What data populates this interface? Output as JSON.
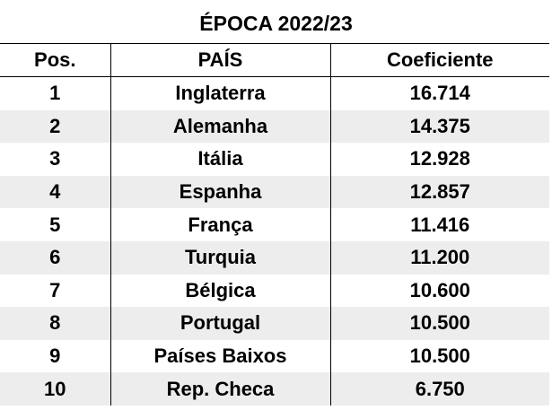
{
  "title": "ÉPOCA 2022/23",
  "table": {
    "headers": {
      "pos": "Pos.",
      "pais": "PAÍS",
      "coeficiente": "Coeficiente"
    },
    "rows": [
      {
        "pos": "1",
        "pais": "Inglaterra",
        "coeficiente": "16.714"
      },
      {
        "pos": "2",
        "pais": "Alemanha",
        "coeficiente": "14.375"
      },
      {
        "pos": "3",
        "pais": "Itália",
        "coeficiente": "12.928"
      },
      {
        "pos": "4",
        "pais": "Espanha",
        "coeficiente": "12.857"
      },
      {
        "pos": "5",
        "pais": "França",
        "coeficiente": "11.416"
      },
      {
        "pos": "6",
        "pais": "Turquia",
        "coeficiente": "11.200"
      },
      {
        "pos": "7",
        "pais": "Bélgica",
        "coeficiente": "10.600"
      },
      {
        "pos": "8",
        "pais": "Portugal",
        "coeficiente": "10.500"
      },
      {
        "pos": "9",
        "pais": "Países Baixos",
        "coeficiente": "10.500"
      },
      {
        "pos": "10",
        "pais": "Rep. Checa",
        "coeficiente": "6.750"
      }
    ]
  },
  "colors": {
    "stripe": "#ededed",
    "text": "#000000",
    "background": "#ffffff"
  }
}
